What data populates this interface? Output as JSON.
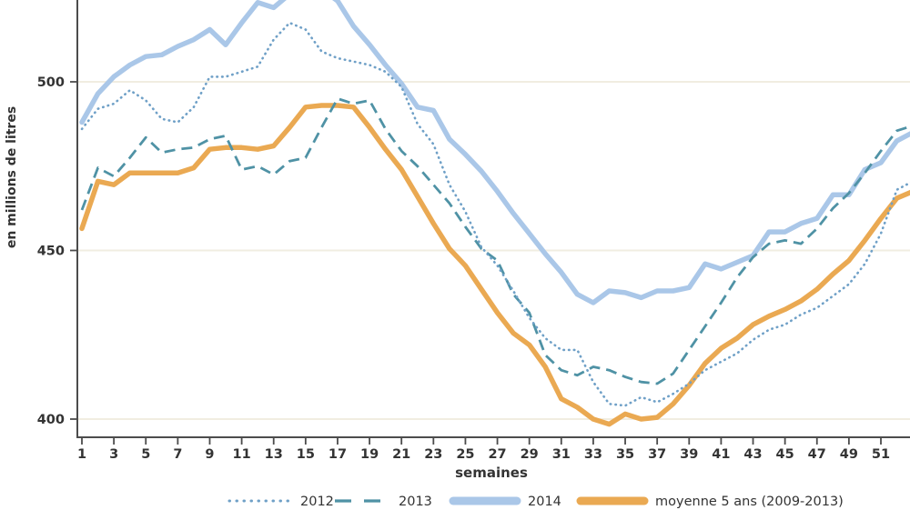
{
  "figure": {
    "ylabel": "en millions de litres",
    "xlabel": "semaines"
  },
  "axes": {
    "yticks": [
      400,
      450,
      500
    ],
    "xticks": [
      1,
      3,
      5,
      7,
      9,
      11,
      13,
      15,
      17,
      19,
      21,
      23,
      25,
      27,
      29,
      31,
      33,
      35,
      37,
      39,
      41,
      43,
      45,
      47,
      49,
      51
    ]
  },
  "colors": {
    "grid": "#f1ede1",
    "axis": "#4c4c4c",
    "text": "#333333",
    "background": "#ffffff",
    "series_2012": "#6fa0c7",
    "series_2013": "#4f92a5",
    "series_2014": "#aac7e8",
    "series_moyenne": "#eaa952"
  },
  "legend": {
    "position": "bottom",
    "entries": [
      "2012",
      "2013",
      "2014",
      "moyenne 5 ans (2009-2013)"
    ]
  },
  "chart_data": {
    "type": "line",
    "title": "",
    "xlabel": "semaines",
    "ylabel": "en millions de litres",
    "x_unit": "semaine",
    "x": [
      1,
      2,
      3,
      4,
      5,
      6,
      7,
      8,
      9,
      10,
      11,
      12,
      13,
      14,
      15,
      16,
      17,
      18,
      19,
      20,
      21,
      22,
      23,
      24,
      25,
      26,
      27,
      28,
      29,
      30,
      31,
      32,
      33,
      34,
      35,
      36,
      37,
      38,
      39,
      40,
      41,
      42,
      43,
      44,
      45,
      46,
      47,
      48,
      49,
      50,
      51,
      52
    ],
    "ylim_visible": [
      392,
      524
    ],
    "grid": "horizontal",
    "legend_position": "bottom",
    "note": "top of plot is cropped; 2014 peak (weeks ~14-17) exceeds the visible area; values in millions de litres, estimated from pixels",
    "series": [
      {
        "name": "2012",
        "style": "dotted",
        "color": "#6fa0c7",
        "z": 4,
        "edge_value": 470.5,
        "values": [
          486,
          492,
          493.5,
          497.5,
          494.5,
          489,
          488,
          492.5,
          501.5,
          501.5,
          503,
          504.5,
          512.5,
          517.5,
          515.5,
          509,
          507,
          506,
          505,
          503,
          498.5,
          487.5,
          481.5,
          469.5,
          461.5,
          451,
          445.5,
          438,
          430,
          424,
          420.5,
          420.5,
          411,
          404.5,
          404,
          406.5,
          405,
          407.5,
          410.5,
          414.5,
          417,
          419.5,
          423.5,
          426.5,
          428,
          431,
          433,
          436.5,
          440,
          446,
          455,
          468
        ]
      },
      {
        "name": "2013",
        "style": "dashed",
        "color": "#4f92a5",
        "z": 3,
        "edge_value": 487,
        "values": [
          462,
          474.5,
          472,
          477.5,
          483.5,
          479,
          480,
          480.5,
          483,
          484,
          474,
          475,
          472.5,
          476.5,
          477.5,
          486.5,
          495,
          493.5,
          494.5,
          486,
          479.5,
          475,
          469.5,
          464,
          457,
          450.5,
          447,
          437,
          431.5,
          419,
          414.5,
          413,
          415.5,
          414.5,
          412.5,
          411,
          410.5,
          413.5,
          420.5,
          427.5,
          434.5,
          442,
          448,
          452,
          453,
          452,
          456.5,
          462.5,
          467,
          473,
          479.5,
          485.5
        ]
      },
      {
        "name": "2014",
        "style": "solid",
        "color": "#aac7e8",
        "z": 1,
        "edge_value": 485,
        "values": [
          488,
          496.5,
          501.5,
          505,
          507.5,
          508,
          510.5,
          512.5,
          515.5,
          511,
          517.5,
          523.5,
          522,
          526,
          528.5,
          527.5,
          524,
          516.5,
          511,
          505,
          499.5,
          492.5,
          491.5,
          483,
          478.5,
          473.5,
          467.5,
          461,
          455,
          449,
          443.5,
          437,
          434.5,
          438,
          437.5,
          436,
          438,
          438,
          439,
          446,
          444.5,
          446.5,
          448.5,
          455.5,
          455.5,
          458,
          459.5,
          466.5,
          466.5,
          474,
          476,
          482.5
        ]
      },
      {
        "name": "moyenne 5 ans (2009-2013)",
        "style": "solid",
        "color": "#eaa952",
        "z": 2,
        "edge_value": 467.5,
        "values": [
          456.5,
          470.5,
          469.5,
          473,
          473,
          473,
          473,
          474.5,
          480,
          480.5,
          480.5,
          480,
          481,
          486.5,
          492.5,
          493,
          493,
          492.5,
          486.5,
          480,
          474,
          466,
          458,
          450.5,
          445.5,
          438.5,
          431.5,
          425.5,
          422,
          415.5,
          406,
          403.5,
          400,
          398.5,
          401.5,
          400,
          400.5,
          404.5,
          410,
          416.5,
          421,
          424,
          428,
          430.5,
          432.5,
          435,
          438.5,
          443,
          447,
          453,
          459.5,
          465.5
        ]
      }
    ]
  }
}
